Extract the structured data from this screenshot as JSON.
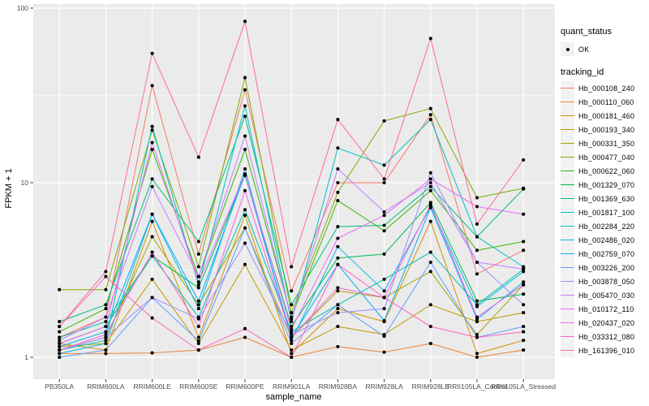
{
  "chart_data": {
    "type": "line",
    "title": "",
    "xlabel": "sample_name",
    "ylabel": "FPKM + 1",
    "y_scale": "log10",
    "y_ticks": [
      1,
      10,
      100
    ],
    "y_minor_ticks": [
      3.1623,
      31.623
    ],
    "ylim": [
      0.75,
      115
    ],
    "grid": "white major+minor gridlines on grey panel",
    "legend_position": "right",
    "panel_bg": "#EBEBEB",
    "grid_color": "#FFFFFF",
    "point_color": "#000000",
    "tick_text_color": "#4D4D4D",
    "x_categories": [
      "PB350LA",
      "RRIM600LA",
      "RRIM600LE",
      "RRIM600SE",
      "RRIM600PE",
      "RRIM901LA",
      "RRIM928BA",
      "RRIM928LA",
      "RRIM928LE",
      "RRII105LA_Control",
      "RRII105LA_Stressed"
    ],
    "quant_legend": {
      "title": "quant_status",
      "item_label": "OK",
      "marker": "point"
    },
    "series_legend_title": "tracking_id",
    "series": [
      {
        "name": "Hb_000108_240",
        "color": "#F8766D",
        "values": [
          1.3,
          1.7,
          36,
          3.9,
          34,
          2.4,
          10,
          10,
          24.5,
          3.0,
          4.1
        ]
      },
      {
        "name": "Hb_000110_060",
        "color": "#EB8335",
        "values": [
          1.05,
          1.05,
          1.06,
          1.1,
          1.3,
          1.0,
          1.15,
          1.07,
          1.2,
          1.0,
          1.1
        ]
      },
      {
        "name": "Hb_000181_460",
        "color": "#D89000",
        "values": [
          1.2,
          1.1,
          6.0,
          1.3,
          6.5,
          1.05,
          1.9,
          1.6,
          6.0,
          1.05,
          1.25
        ]
      },
      {
        "name": "Hb_000193_340",
        "color": "#C09B00",
        "values": [
          1.15,
          1.2,
          2.8,
          1.2,
          3.4,
          1.1,
          1.5,
          1.35,
          2.0,
          1.6,
          1.8
        ]
      },
      {
        "name": "Hb_000331_350",
        "color": "#A3A500",
        "values": [
          1.1,
          1.3,
          4.9,
          2.0,
          5.5,
          1.3,
          2.4,
          2.2,
          3.1,
          1.35,
          2.6
        ]
      },
      {
        "name": "Hb_000477_040",
        "color": "#7CAE00",
        "values": [
          2.44,
          2.44,
          20,
          3.3,
          40,
          1.8,
          8.8,
          22.6,
          26.6,
          8.2,
          9.3
        ]
      },
      {
        "name": "Hb_000622_060",
        "color": "#39B600",
        "values": [
          1.4,
          1.9,
          15.5,
          2.9,
          15.5,
          1.7,
          7.9,
          5.3,
          9.0,
          4.1,
          4.6
        ]
      },
      {
        "name": "Hb_001329_070",
        "color": "#00BB4E",
        "values": [
          1.2,
          1.5,
          3.8,
          2.5,
          11,
          1.5,
          3.7,
          3.9,
          7.7,
          2.1,
          2.3
        ]
      },
      {
        "name": "Hb_001369_630",
        "color": "#00BF7D",
        "values": [
          1.6,
          2.0,
          10.5,
          4.6,
          24,
          2.0,
          5.6,
          5.7,
          9.5,
          4.9,
          9.2
        ]
      },
      {
        "name": "Hb_001817_100",
        "color": "#00C1A7",
        "values": [
          1.3,
          1.6,
          3.8,
          1.7,
          7.0,
          1.4,
          2.0,
          2.8,
          4.0,
          2.0,
          3.2
        ]
      },
      {
        "name": "Hb_002284_220",
        "color": "#00BFC4",
        "values": [
          1.1,
          1.25,
          21,
          2.6,
          27.5,
          1.6,
          15.8,
          12.6,
          23,
          4.9,
          3.3
        ]
      },
      {
        "name": "Hb_002486_020",
        "color": "#00B8E5",
        "values": [
          1.05,
          1.2,
          6.6,
          1.9,
          12,
          1.25,
          4.3,
          2.4,
          7.3,
          1.95,
          3.1
        ]
      },
      {
        "name": "Hb_002759_070",
        "color": "#00ACFC",
        "values": [
          1.15,
          1.4,
          6.6,
          2.1,
          11.2,
          1.3,
          3.4,
          1.62,
          7.2,
          1.65,
          2.7
        ]
      },
      {
        "name": "Hb_003226_200",
        "color": "#619CFF",
        "values": [
          1.0,
          1.1,
          2.2,
          1.24,
          5.5,
          1.2,
          2.0,
          1.32,
          3.5,
          1.3,
          1.5
        ]
      },
      {
        "name": "Hb_003878_050",
        "color": "#9590FF",
        "values": [
          1.1,
          1.3,
          2.2,
          1.66,
          4.5,
          1.35,
          1.8,
          1.9,
          11.4,
          3.5,
          2.0
        ]
      },
      {
        "name": "Hb_005470_030",
        "color": "#C77CFF",
        "values": [
          1.25,
          1.7,
          9.5,
          2.9,
          18.5,
          1.66,
          12,
          6.8,
          10,
          3.5,
          3.2
        ]
      },
      {
        "name": "Hb_010172_110",
        "color": "#E76BF3",
        "values": [
          1.2,
          1.5,
          17,
          2.7,
          11.2,
          1.45,
          4.8,
          6.5,
          10.5,
          7.3,
          6.6
        ]
      },
      {
        "name": "Hb_020437_020",
        "color": "#FA62DB",
        "values": [
          1.1,
          1.35,
          4.0,
          1.5,
          9.0,
          1.3,
          2.5,
          2.2,
          7.5,
          1.7,
          2.6
        ]
      },
      {
        "name": "Hb_033312_080",
        "color": "#FF62BC",
        "values": [
          1.5,
          2.9,
          1.68,
          1.1,
          1.46,
          1.0,
          3.4,
          2.2,
          1.5,
          1.3,
          1.4
        ]
      },
      {
        "name": "Hb_161396_010",
        "color": "#FF6A98",
        "values": [
          1.5,
          3.1,
          55,
          14,
          84,
          3.3,
          23,
          10.5,
          67,
          5.8,
          13.5
        ]
      }
    ]
  }
}
